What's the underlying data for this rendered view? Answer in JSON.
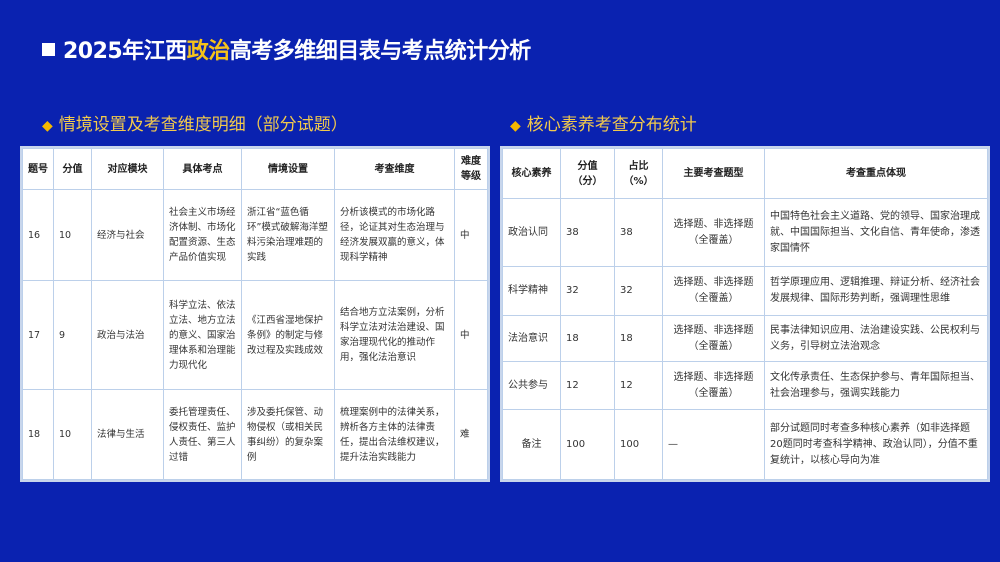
{
  "title": {
    "prefix": "2025年江西",
    "highlight": "政治",
    "suffix": "高考多维细目表与考点统计分析"
  },
  "colors": {
    "background": "#0a22b0",
    "highlight": "#f5c21b",
    "subheading": "#f2c94c"
  },
  "left": {
    "heading": "情境设置及考查维度明细（部分试题）",
    "headers": [
      "题号",
      "分值",
      "对应模块",
      "具体考点",
      "情境设置",
      "考查维度",
      "难度等级"
    ],
    "rows": [
      [
        "16",
        "10",
        "经济与社会",
        "社会主义市场经济体制、市场化配置资源、生态产品价值实现",
        "浙江省“蓝色循环”模式破解海洋塑料污染治理难题的实践",
        "分析该模式的市场化路径，论证其对生态治理与经济发展双赢的意义，体现科学精神",
        "中"
      ],
      [
        "17",
        "9",
        "政治与法治",
        "科学立法、依法立法、地方立法的意义、国家治理体系和治理能力现代化",
        "《江西省湿地保护条例》的制定与修改过程及实践成效",
        "结合地方立法案例，分析科学立法对法治建设、国家治理现代化的推动作用，强化法治意识",
        "中"
      ],
      [
        "18",
        "10",
        "法律与生活",
        "委托管理责任、侵权责任、监护人责任、第三人过错",
        "涉及委托保管、动物侵权（或相关民事纠纷）的复杂案例",
        "梳理案例中的法律关系，辨析各方主体的法律责任，提出合法维权建议，提升法治实践能力",
        "难"
      ]
    ]
  },
  "right": {
    "heading": "核心素养考查分布统计",
    "headers": [
      "核心素养",
      "分值（分）",
      "占比（%）",
      "主要考查题型",
      "考查重点体现"
    ],
    "rows": [
      [
        "政治认同",
        "38",
        "38",
        "选择题、非选择题（全覆盖）",
        "中国特色社会主义道路、党的领导、国家治理成就、中国国际担当、文化自信、青年使命，渗透家国情怀"
      ],
      [
        "科学精神",
        "32",
        "32",
        "选择题、非选择题（全覆盖）",
        "哲学原理应用、逻辑推理、辩证分析、经济社会发展规律、国际形势判断，强调理性思维"
      ],
      [
        "法治意识",
        "18",
        "18",
        "选择题、非选择题（全覆盖）",
        "民事法律知识应用、法治建设实践、公民权利与义务，引导树立法治观念"
      ],
      [
        "公共参与",
        "12",
        "12",
        "选择题、非选择题（全覆盖）",
        "文化传承责任、生态保护参与、青年国际担当、社会治理参与，强调实践能力"
      ],
      [
        "备注",
        "100",
        "100",
        "—",
        "部分试题同时考查多种核心素养（如非选择题20题同时考查科学精神、政治认同），分值不重复统计，以核心导向为准"
      ]
    ]
  }
}
